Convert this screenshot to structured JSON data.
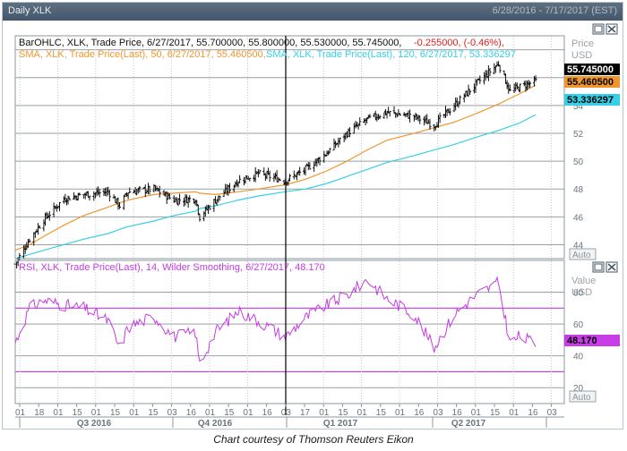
{
  "window": {
    "title": "Daily XLK",
    "date_range": "6/28/2016 - 7/17/2017 (EST)"
  },
  "caption": "Chart courtesy of Thomson Reuters Eikon",
  "price_panel": {
    "legend": {
      "ohlc": "BarOHLC, XLK, Trade Price, 6/27/2017, 55.700000, 55.800000, 55.530000, 55.745000,",
      "change": "-0.255000, (-0.46%),",
      "sma50": "SMA, XLK, Trade Price(Last),  50, 6/27/2017, 55.460500,",
      "sma120": "SMA, XLK, Trade Price(Last),  120, 6/27/2017, 53.336297"
    },
    "axis_title": "Price",
    "axis_unit": "USD",
    "auto_label": "Auto",
    "badges": {
      "last": "55.745000",
      "sma50": "55.460500",
      "sma120": "53.336297"
    },
    "colors": {
      "bars": "#111111",
      "sma50": "#f0962c",
      "sma120": "#35d0e8",
      "change": "#e01e1e"
    }
  },
  "rsi_panel": {
    "legend": "RSI, XLK, Trade Price(Last),  14, Wilder Smoothing, 6/27/2017, 48.170",
    "axis_title": "Value",
    "axis_unit": "USD",
    "auto_label": "Auto",
    "badge": "48.170",
    "colors": {
      "line": "#c43ce0",
      "levels": "#c43ce0",
      "badge": "#c73ee6"
    }
  },
  "x_axis": {
    "day_ticks": [
      "01",
      "18",
      "01",
      "15",
      "01",
      "15",
      "01",
      "15",
      "03",
      "16",
      "01",
      "15",
      "01",
      "16",
      "03",
      "17",
      "01",
      "15",
      "01",
      "15",
      "01",
      "16",
      "03",
      "16",
      "01",
      "15",
      "01",
      "16",
      "03"
    ],
    "quarters": [
      "Q3 2016",
      "Q4 2016",
      "Q1 2017",
      "Q2 2017"
    ]
  },
  "chart_data": [
    {
      "type": "line",
      "title": "Daily XLK",
      "subtitle": "6/28/2016 - 7/17/2017 (EST)",
      "ylabel": "Price USD",
      "ylim": [
        43,
        59
      ],
      "y_ticks": [
        44,
        46,
        48,
        50,
        52,
        54
      ],
      "grid": true,
      "x": [
        "2016-06-28",
        "2016-07-08",
        "2016-07-18",
        "2016-08-01",
        "2016-08-15",
        "2016-09-01",
        "2016-09-09",
        "2016-09-15",
        "2016-10-03",
        "2016-10-17",
        "2016-11-01",
        "2016-11-04",
        "2016-11-15",
        "2016-12-01",
        "2016-12-15",
        "2017-01-03",
        "2017-01-17",
        "2017-02-01",
        "2017-02-15",
        "2017-03-01",
        "2017-03-15",
        "2017-04-03",
        "2017-04-17",
        "2017-05-01",
        "2017-05-16",
        "2017-06-01",
        "2017-06-09",
        "2017-06-15",
        "2017-06-27"
      ],
      "series": [
        {
          "name": "XLK",
          "values": [
            42.6,
            44.4,
            45.8,
            47.3,
            47.6,
            47.8,
            46.8,
            47.8,
            48.0,
            47.2,
            47.3,
            46.0,
            47.2,
            48.6,
            49.1,
            48.6,
            49.4,
            50.6,
            52.0,
            53.0,
            53.5,
            53.2,
            52.6,
            54.0,
            55.5,
            57.0,
            55.0,
            55.3,
            55.745
          ]
        },
        {
          "name": "SMA 50",
          "values": [
            43.6,
            44.0,
            44.6,
            45.4,
            46.1,
            46.7,
            47.0,
            47.2,
            47.6,
            47.7,
            47.8,
            47.7,
            47.6,
            47.8,
            48.0,
            48.3,
            48.7,
            49.3,
            50.0,
            50.8,
            51.5,
            52.0,
            52.4,
            52.8,
            53.4,
            54.1,
            54.5,
            54.8,
            55.4605
          ]
        },
        {
          "name": "SMA 120",
          "values": [
            43.0,
            43.3,
            43.6,
            44.0,
            44.4,
            44.8,
            45.1,
            45.3,
            45.7,
            46.1,
            46.4,
            46.6,
            46.8,
            47.2,
            47.5,
            47.8,
            48.0,
            48.4,
            48.9,
            49.4,
            49.9,
            50.4,
            50.8,
            51.2,
            51.7,
            52.2,
            52.5,
            52.7,
            53.3363
          ]
        }
      ]
    },
    {
      "type": "line",
      "ylabel": "Value USD",
      "ylim": [
        10,
        100
      ],
      "y_ticks": [
        20,
        40,
        60,
        80
      ],
      "reference_levels": [
        30,
        70
      ],
      "grid": true,
      "x": [
        "2016-06-28",
        "2016-07-08",
        "2016-07-18",
        "2016-08-01",
        "2016-08-15",
        "2016-09-01",
        "2016-09-09",
        "2016-09-15",
        "2016-10-03",
        "2016-10-17",
        "2016-11-01",
        "2016-11-04",
        "2016-11-15",
        "2016-12-01",
        "2016-12-15",
        "2017-01-03",
        "2017-01-17",
        "2017-02-01",
        "2017-02-15",
        "2017-03-01",
        "2017-03-15",
        "2017-04-03",
        "2017-04-17",
        "2017-05-01",
        "2017-05-16",
        "2017-06-01",
        "2017-06-09",
        "2017-06-15",
        "2017-06-27"
      ],
      "series": [
        {
          "name": "RSI 14",
          "values": [
            48,
            70,
            75,
            72,
            70,
            62,
            45,
            58,
            65,
            52,
            55,
            35,
            55,
            68,
            62,
            52,
            64,
            72,
            78,
            88,
            76,
            66,
            45,
            66,
            78,
            86,
            48,
            52,
            48.17
          ]
        }
      ]
    }
  ]
}
